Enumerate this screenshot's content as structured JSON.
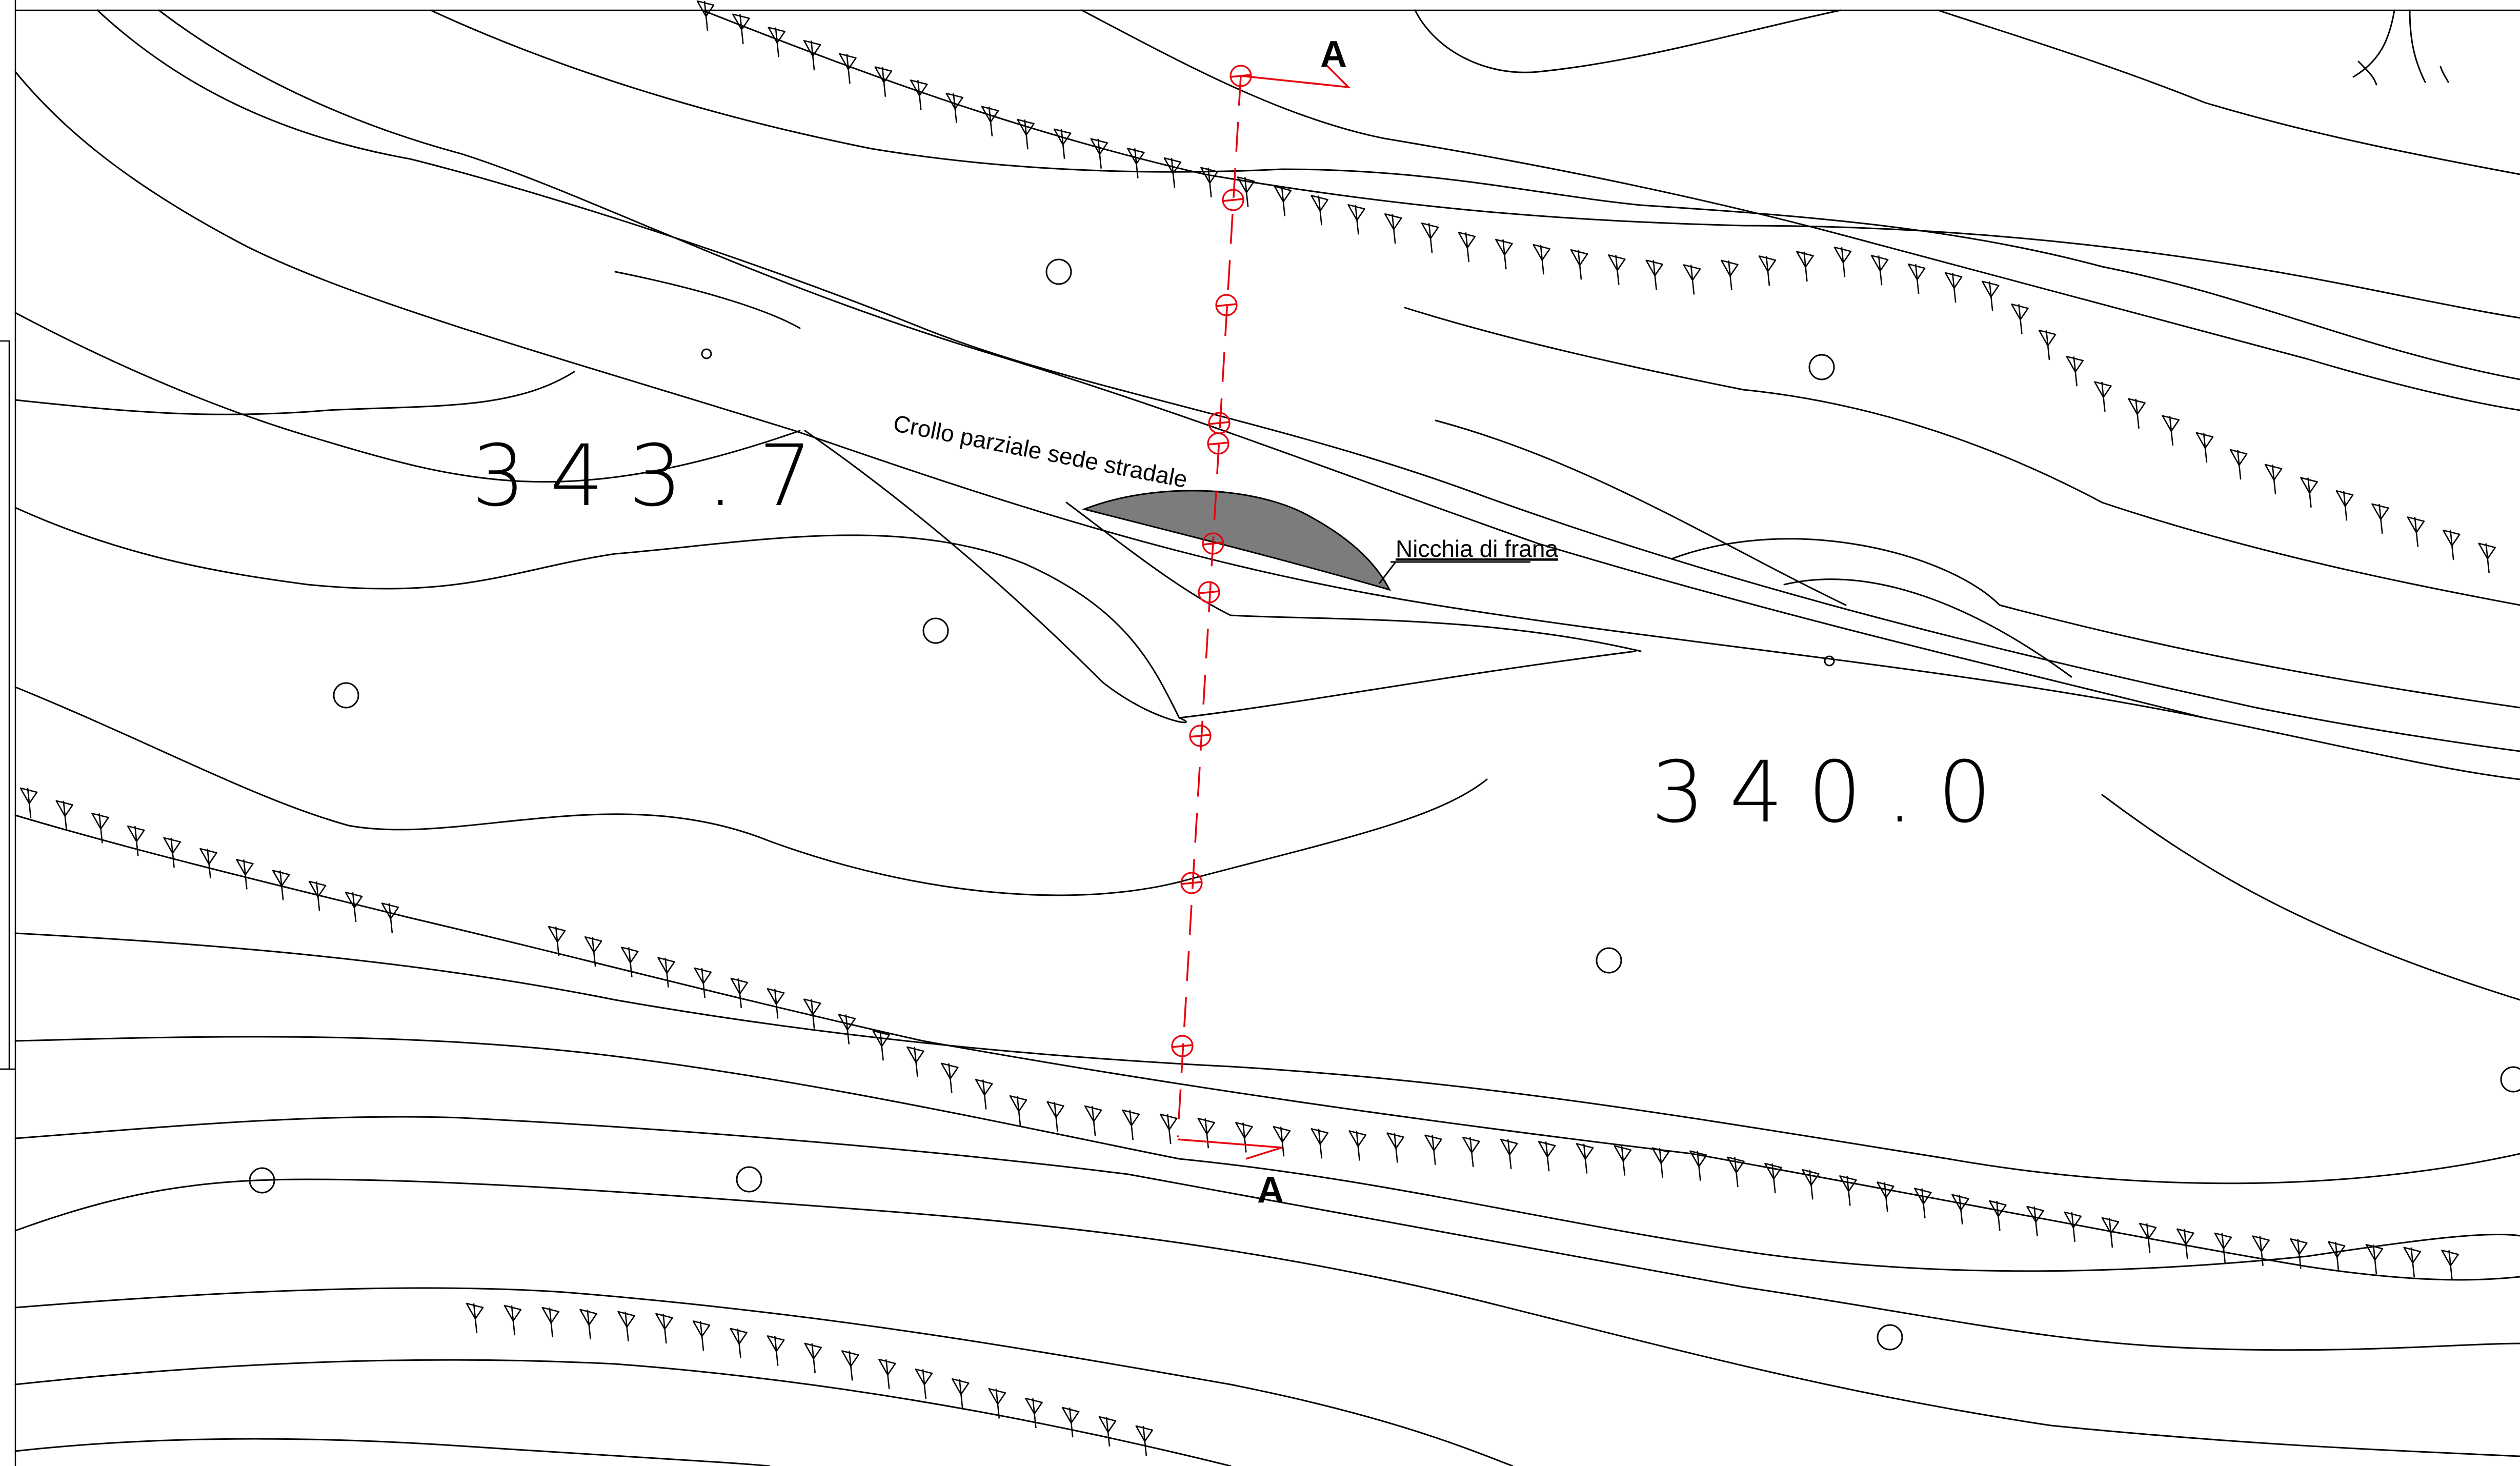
{
  "map": {
    "elevation_labels": [
      "343.7",
      "340.0"
    ],
    "annotations": {
      "road_collapse": "Crollo parziale sede stradale",
      "landslide_niche": "Nicchia di frana"
    },
    "section": {
      "start_label": "A",
      "end_label": "A",
      "color": "#e8000b"
    },
    "niche_fill_color": "#7c7c7c",
    "line_color": "#000000"
  }
}
